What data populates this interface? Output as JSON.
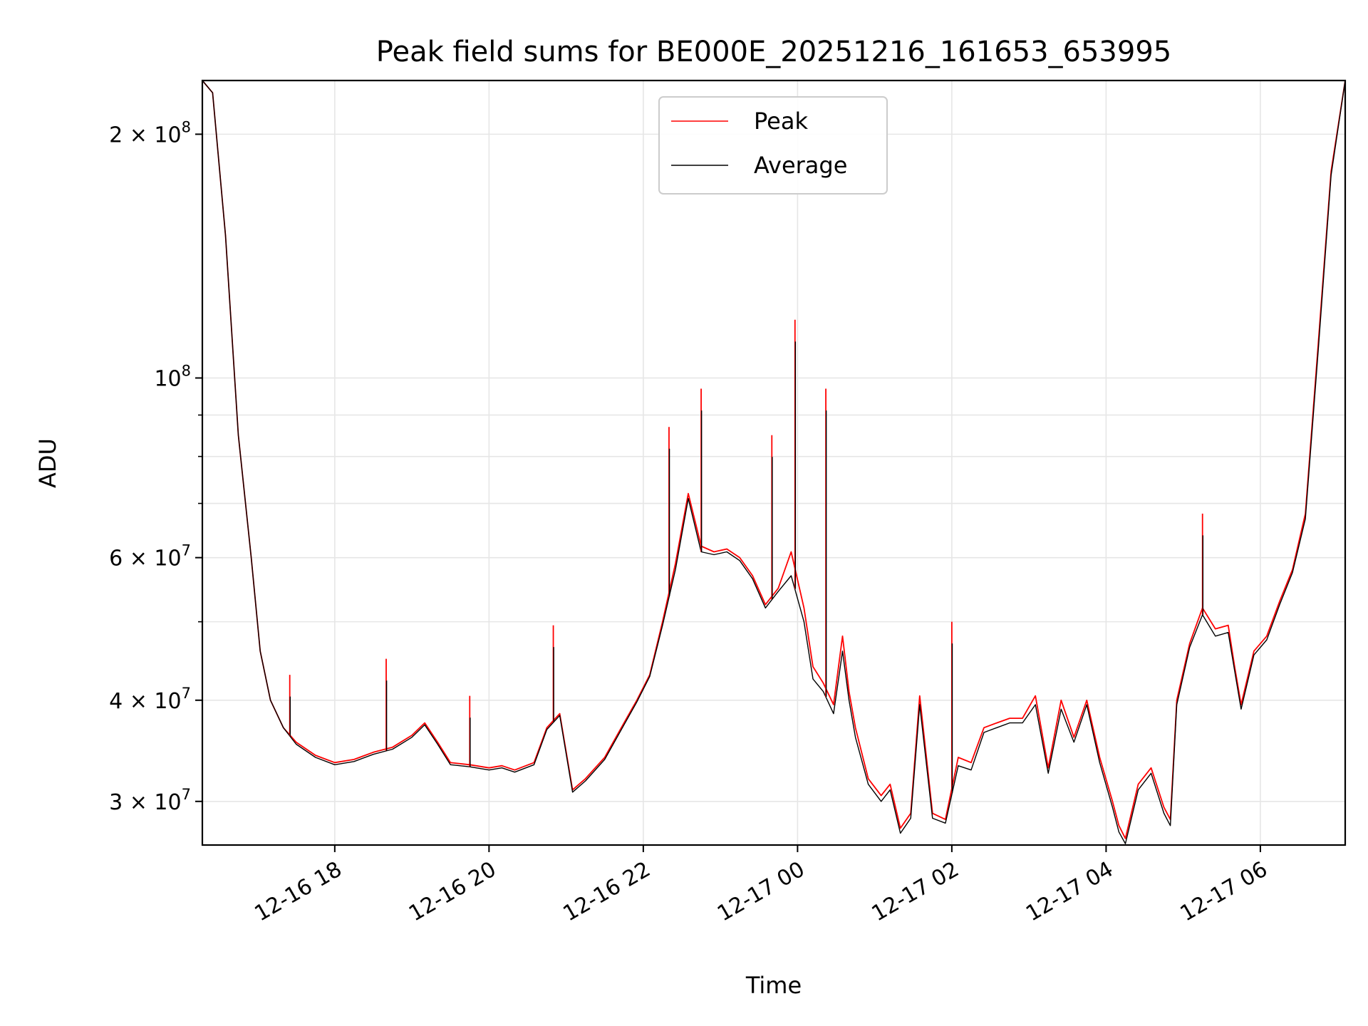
{
  "chart_data": {
    "type": "line",
    "title": "Peak field sums for BE000E_20251216_161653_653995",
    "xlabel": "Time",
    "ylabel": "ADU",
    "yscale": "log",
    "grid": true,
    "legend_position": "top-center",
    "xlim": [
      "2025-12-16 16:17",
      "2025-12-17 07:06"
    ],
    "ylim": [
      26500000,
      233000000
    ],
    "x_ticks": [
      {
        "value": "2025-12-16 18:00",
        "label": "12-16 18"
      },
      {
        "value": "2025-12-16 20:00",
        "label": "12-16 20"
      },
      {
        "value": "2025-12-16 22:00",
        "label": "12-16 22"
      },
      {
        "value": "2025-12-17 00:00",
        "label": "12-17 00"
      },
      {
        "value": "2025-12-17 02:00",
        "label": "12-17 02"
      },
      {
        "value": "2025-12-17 04:00",
        "label": "12-17 04"
      },
      {
        "value": "2025-12-17 06:00",
        "label": "12-17 06"
      }
    ],
    "y_ticks": [
      {
        "value": 30000000,
        "label": "3 × 10^7",
        "mantissa": "3",
        "exponent": "7"
      },
      {
        "value": 40000000,
        "label": "4 × 10^7",
        "mantissa": "4",
        "exponent": "7"
      },
      {
        "value": 60000000,
        "label": "6 × 10^7",
        "mantissa": "6",
        "exponent": "7"
      },
      {
        "value": 100000000,
        "label": "10^8",
        "mantissa": "",
        "exponent": "8"
      },
      {
        "value": 200000000,
        "label": "2 × 10^8",
        "mantissa": "2",
        "exponent": "8"
      }
    ],
    "y_minor_ticks": [
      50000000,
      70000000,
      80000000,
      90000000
    ],
    "x": [
      "2025-12-16 16:17",
      "2025-12-16 16:25",
      "2025-12-16 16:35",
      "2025-12-16 16:45",
      "2025-12-16 16:55",
      "2025-12-16 17:02",
      "2025-12-16 17:10",
      "2025-12-16 17:20",
      "2025-12-16 17:30",
      "2025-12-16 17:45",
      "2025-12-16 18:00",
      "2025-12-16 18:15",
      "2025-12-16 18:30",
      "2025-12-16 18:45",
      "2025-12-16 19:00",
      "2025-12-16 19:10",
      "2025-12-16 19:20",
      "2025-12-16 19:30",
      "2025-12-16 19:45",
      "2025-12-16 20:00",
      "2025-12-16 20:10",
      "2025-12-16 20:20",
      "2025-12-16 20:35",
      "2025-12-16 20:45",
      "2025-12-16 20:55",
      "2025-12-16 21:05",
      "2025-12-16 21:15",
      "2025-12-16 21:30",
      "2025-12-16 21:45",
      "2025-12-16 21:55",
      "2025-12-16 22:05",
      "2025-12-16 22:15",
      "2025-12-16 22:25",
      "2025-12-16 22:35",
      "2025-12-16 22:45",
      "2025-12-16 22:55",
      "2025-12-16 23:05",
      "2025-12-16 23:15",
      "2025-12-16 23:25",
      "2025-12-16 23:35",
      "2025-12-16 23:45",
      "2025-12-16 23:55",
      "2025-12-17 00:05",
      "2025-12-17 00:12",
      "2025-12-17 00:20",
      "2025-12-17 00:28",
      "2025-12-17 00:35",
      "2025-12-17 00:40",
      "2025-12-17 00:45",
      "2025-12-17 00:55",
      "2025-12-17 01:05",
      "2025-12-17 01:12",
      "2025-12-17 01:20",
      "2025-12-17 01:28",
      "2025-12-17 01:35",
      "2025-12-17 01:45",
      "2025-12-17 01:55",
      "2025-12-17 02:05",
      "2025-12-17 02:15",
      "2025-12-17 02:25",
      "2025-12-17 02:35",
      "2025-12-17 02:45",
      "2025-12-17 02:55",
      "2025-12-17 03:05",
      "2025-12-17 03:15",
      "2025-12-17 03:25",
      "2025-12-17 03:35",
      "2025-12-17 03:45",
      "2025-12-17 03:55",
      "2025-12-17 04:05",
      "2025-12-17 04:10",
      "2025-12-17 04:15",
      "2025-12-17 04:25",
      "2025-12-17 04:35",
      "2025-12-17 04:45",
      "2025-12-17 04:50",
      "2025-12-17 04:55",
      "2025-12-17 05:05",
      "2025-12-17 05:15",
      "2025-12-17 05:25",
      "2025-12-17 05:35",
      "2025-12-17 05:40",
      "2025-12-17 05:45",
      "2025-12-17 05:55",
      "2025-12-17 06:05",
      "2025-12-17 06:15",
      "2025-12-17 06:25",
      "2025-12-17 06:35",
      "2025-12-17 06:45",
      "2025-12-17 06:55",
      "2025-12-17 07:06"
    ],
    "series": [
      {
        "name": "Peak",
        "color": "#ff0000",
        "values": [
          233000000,
          225000000,
          150000000,
          85000000,
          60000000,
          46000000,
          40000000,
          37000000,
          35500000,
          34200000,
          33500000,
          33800000,
          34500000,
          35000000,
          36200000,
          37500000,
          35500000,
          33500000,
          33300000,
          33000000,
          33200000,
          32800000,
          33500000,
          37000000,
          38500000,
          31000000,
          32000000,
          34000000,
          37500000,
          40000000,
          43000000,
          50000000,
          59000000,
          72000000,
          62000000,
          61000000,
          61500000,
          60000000,
          57000000,
          52500000,
          55000000,
          61000000,
          52000000,
          44000000,
          42000000,
          39500000,
          48000000,
          41000000,
          37000000,
          32000000,
          30500000,
          31500000,
          27800000,
          29000000,
          40500000,
          29000000,
          28500000,
          34000000,
          33500000,
          37000000,
          37500000,
          38000000,
          38000000,
          40500000,
          33000000,
          40000000,
          36000000,
          40000000,
          34000000,
          30000000,
          28000000,
          27000000,
          31500000,
          33000000,
          29500000,
          28500000,
          40000000,
          47000000,
          52000000,
          49000000,
          49500000,
          44000000,
          39500000,
          46000000,
          48000000,
          53000000,
          58000000,
          68000000,
          110000000,
          180000000,
          233000000
        ]
      },
      {
        "name": "Average",
        "color": "#000000",
        "values": [
          233000000,
          225000000,
          150000000,
          85000000,
          60000000,
          46000000,
          40000000,
          37000000,
          35300000,
          34000000,
          33300000,
          33600000,
          34300000,
          34800000,
          36000000,
          37300000,
          35300000,
          33300000,
          33100000,
          32800000,
          33000000,
          32600000,
          33300000,
          36800000,
          38300000,
          30800000,
          31800000,
          33800000,
          37300000,
          39800000,
          42800000,
          49500000,
          58000000,
          71000000,
          61000000,
          60500000,
          61000000,
          59500000,
          56500000,
          52000000,
          54500000,
          57000000,
          50000000,
          42500000,
          41000000,
          38500000,
          46000000,
          40000000,
          36000000,
          31500000,
          30000000,
          31000000,
          27400000,
          28600000,
          39500000,
          28600000,
          28200000,
          33200000,
          32800000,
          36500000,
          37000000,
          37500000,
          37500000,
          39500000,
          32500000,
          39000000,
          35500000,
          39500000,
          33500000,
          29500000,
          27500000,
          26600000,
          31000000,
          32500000,
          29000000,
          28000000,
          39500000,
          46500000,
          51000000,
          48000000,
          48500000,
          43500000,
          39000000,
          45500000,
          47500000,
          52500000,
          57500000,
          67000000,
          108000000,
          178000000,
          233000000
        ]
      }
    ],
    "peaks": [
      {
        "x": "2025-12-16 17:25",
        "value": 43000000
      },
      {
        "x": "2025-12-16 18:40",
        "value": 45000000
      },
      {
        "x": "2025-12-16 19:45",
        "value": 40500000
      },
      {
        "x": "2025-12-16 20:50",
        "value": 49500000
      },
      {
        "x": "2025-12-16 22:20",
        "value": 87000000
      },
      {
        "x": "2025-12-16 22:45",
        "value": 97000000
      },
      {
        "x": "2025-12-16 23:40",
        "value": 85000000
      },
      {
        "x": "2025-12-16 23:58",
        "value": 118000000
      },
      {
        "x": "2025-12-17 00:22",
        "value": 97000000
      },
      {
        "x": "2025-12-17 02:00",
        "value": 50000000
      },
      {
        "x": "2025-12-17 05:15",
        "value": 68000000
      }
    ]
  }
}
